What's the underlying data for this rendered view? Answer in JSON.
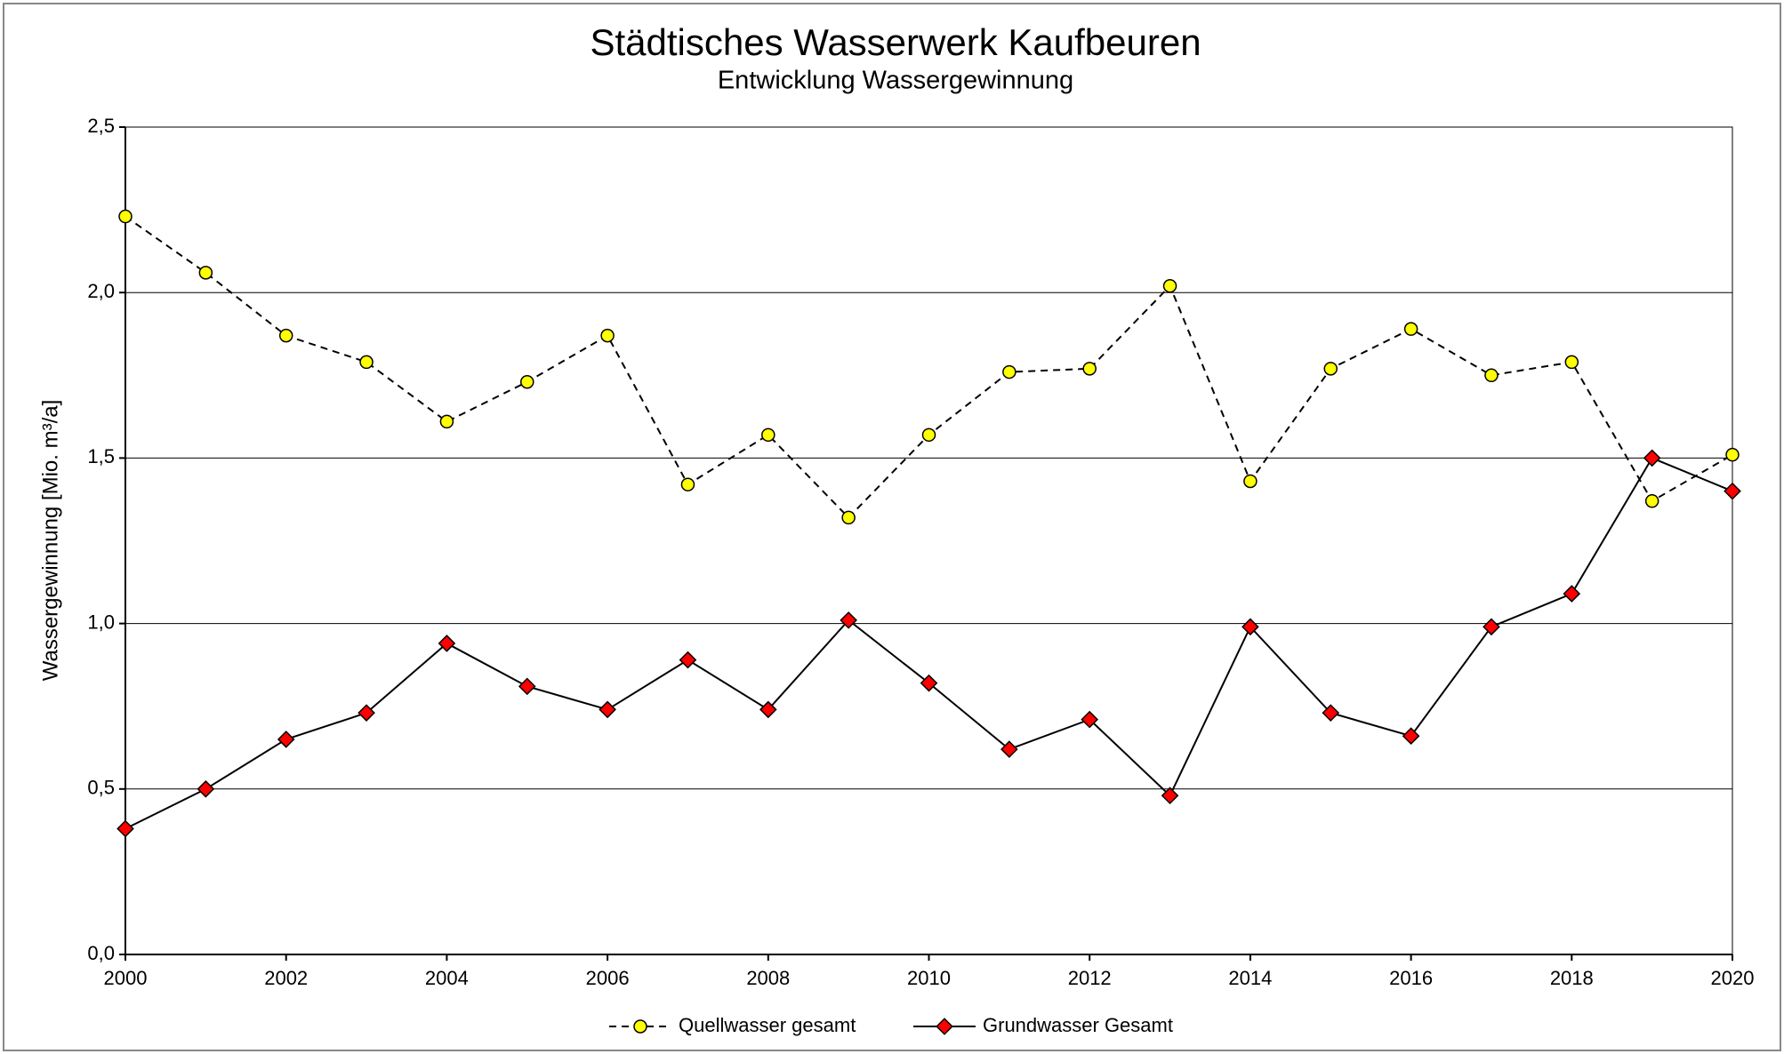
{
  "chart_data": {
    "type": "line",
    "title": "Städtisches Wasserwerk Kaufbeuren",
    "subtitle": "Entwicklung Wassergewinnung",
    "y_label": "Wassergewinnung [Mio. m³/a]",
    "x": [
      2000,
      2001,
      2002,
      2003,
      2004,
      2005,
      2006,
      2007,
      2008,
      2009,
      2010,
      2011,
      2012,
      2013,
      2014,
      2015,
      2016,
      2017,
      2018,
      2019,
      2020
    ],
    "xlim": [
      2000,
      2020
    ],
    "xticks": [
      2000,
      2002,
      2004,
      2006,
      2008,
      2010,
      2012,
      2014,
      2016,
      2018,
      2020
    ],
    "ylim": [
      0,
      2.5
    ],
    "yticks": [
      {
        "value": 0,
        "label": "0,0"
      },
      {
        "value": 0.5,
        "label": "0,5"
      },
      {
        "value": 1,
        "label": "1,0"
      },
      {
        "value": 1.5,
        "label": "1,5"
      },
      {
        "value": 2,
        "label": "2,0"
      },
      {
        "value": 2.5,
        "label": "2,5"
      }
    ],
    "grid": true,
    "legend": "bottom",
    "series": [
      {
        "name": "Quellwasser gesamt",
        "color": "#ffff00",
        "marker": "circle",
        "dashed": true,
        "values": [
          2.23,
          2.06,
          1.87,
          1.79,
          1.61,
          1.73,
          1.87,
          1.42,
          1.57,
          1.32,
          1.57,
          1.76,
          1.77,
          2.02,
          1.43,
          1.77,
          1.89,
          1.75,
          1.79,
          1.37,
          1.51
        ]
      },
      {
        "name": "Grundwasser Gesamt",
        "color": "#ff0000",
        "marker": "diamond",
        "dashed": false,
        "values": [
          0.38,
          0.5,
          0.65,
          0.73,
          0.94,
          0.81,
          0.74,
          0.89,
          0.74,
          1.01,
          0.82,
          0.62,
          0.71,
          0.48,
          0.99,
          0.73,
          0.66,
          0.99,
          1.09,
          1.5,
          1.4
        ]
      }
    ]
  }
}
